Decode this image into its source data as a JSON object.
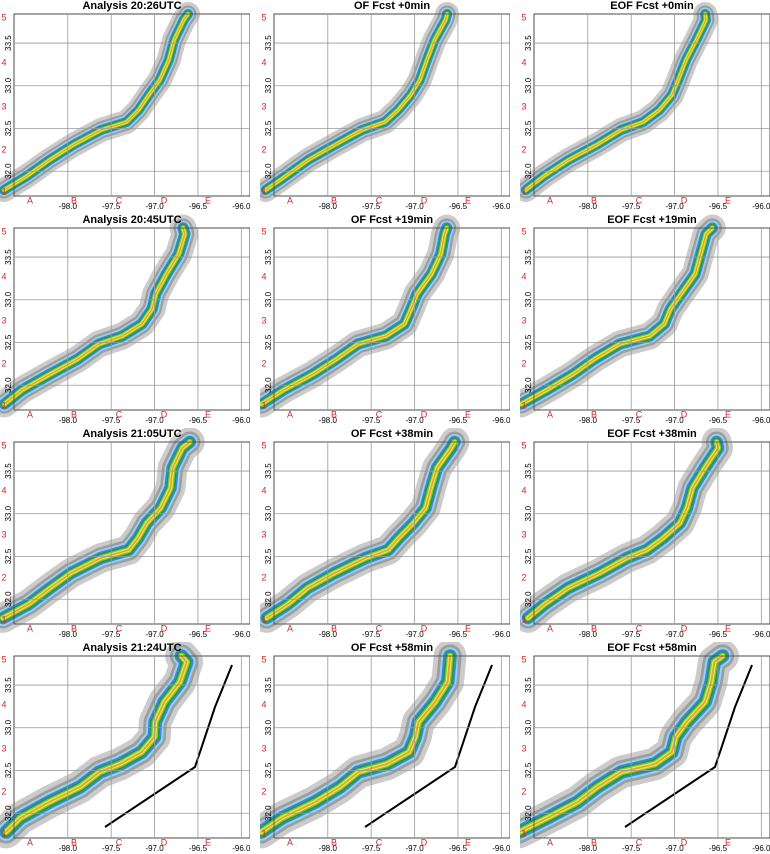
{
  "panels": [
    {
      "title": "Analysis 20:26UTC"
    },
    {
      "title": "OF Fcst +0min"
    },
    {
      "title": "EOF Fcst +0min"
    },
    {
      "title": "Analysis 20:45UTC"
    },
    {
      "title": "OF Fcst +19min"
    },
    {
      "title": "EOF Fcst +19min"
    },
    {
      "title": "Analysis 21:05UTC"
    },
    {
      "title": "OF Fcst +38min"
    },
    {
      "title": "EOF Fcst +38min"
    },
    {
      "title": "Analysis 21:24UTC"
    },
    {
      "title": "OF Fcst +58min"
    },
    {
      "title": "EOF Fcst +58min"
    }
  ],
  "xlim": [
    -98.62,
    -95.9
  ],
  "ylim": [
    31.71,
    33.84
  ],
  "xticks": [
    {
      "value": -98,
      "label": "-98.0"
    },
    {
      "value": -97.5,
      "label": "-97.5"
    },
    {
      "value": -97,
      "label": "-97.0"
    },
    {
      "value": -96.5,
      "label": "-96.5"
    },
    {
      "value": -96,
      "label": "-96.0"
    }
  ],
  "yticks": [
    {
      "value": 32,
      "label": "32.0"
    },
    {
      "value": 32.5,
      "label": "32.5"
    },
    {
      "value": 33,
      "label": "33.0"
    },
    {
      "value": 33.5,
      "label": "33.5"
    }
  ],
  "x_letters": [
    "A",
    "B",
    "C",
    "D",
    "E"
  ],
  "y_letters": [
    "1",
    "2",
    "3",
    "4",
    "5"
  ]
}
